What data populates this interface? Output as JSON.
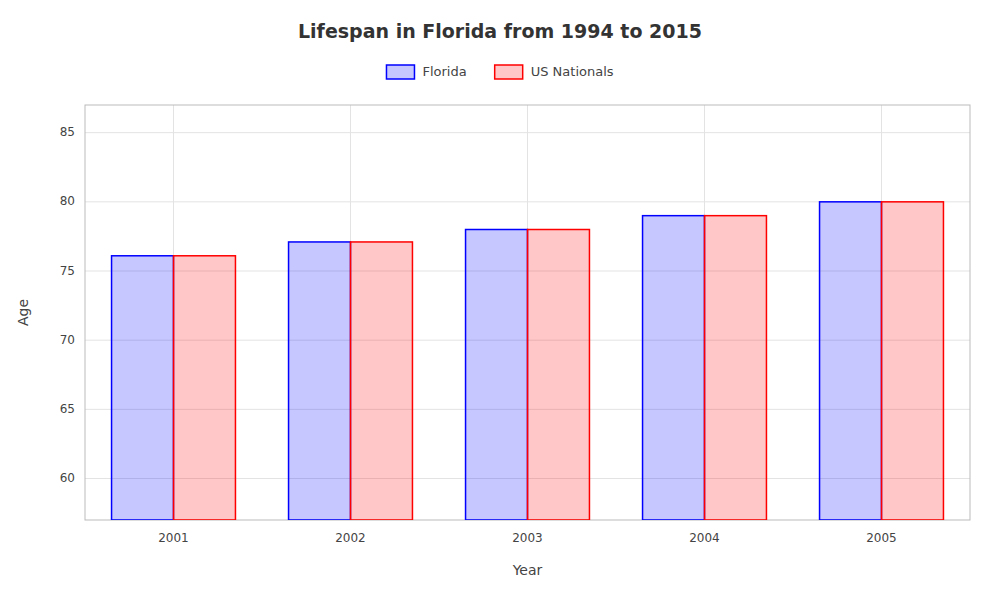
{
  "chart_data": {
    "type": "bar",
    "title": "Lifespan in Florida from 1994 to 2015",
    "x_label": "Year",
    "y_label": "Age",
    "categories": [
      "2001",
      "2002",
      "2003",
      "2004",
      "2005"
    ],
    "series": [
      {
        "name": "Florida",
        "color": "#0000ff",
        "values": [
          76.1,
          77.1,
          78.0,
          79.0,
          80.0
        ]
      },
      {
        "name": "US Nationals",
        "color": "#ff0000",
        "values": [
          76.1,
          77.1,
          78.0,
          79.0,
          80.0
        ]
      }
    ],
    "ylim": [
      57,
      87
    ],
    "yticks": [
      60,
      65,
      70,
      75,
      80,
      85
    ],
    "grid": true,
    "legend": "top"
  }
}
